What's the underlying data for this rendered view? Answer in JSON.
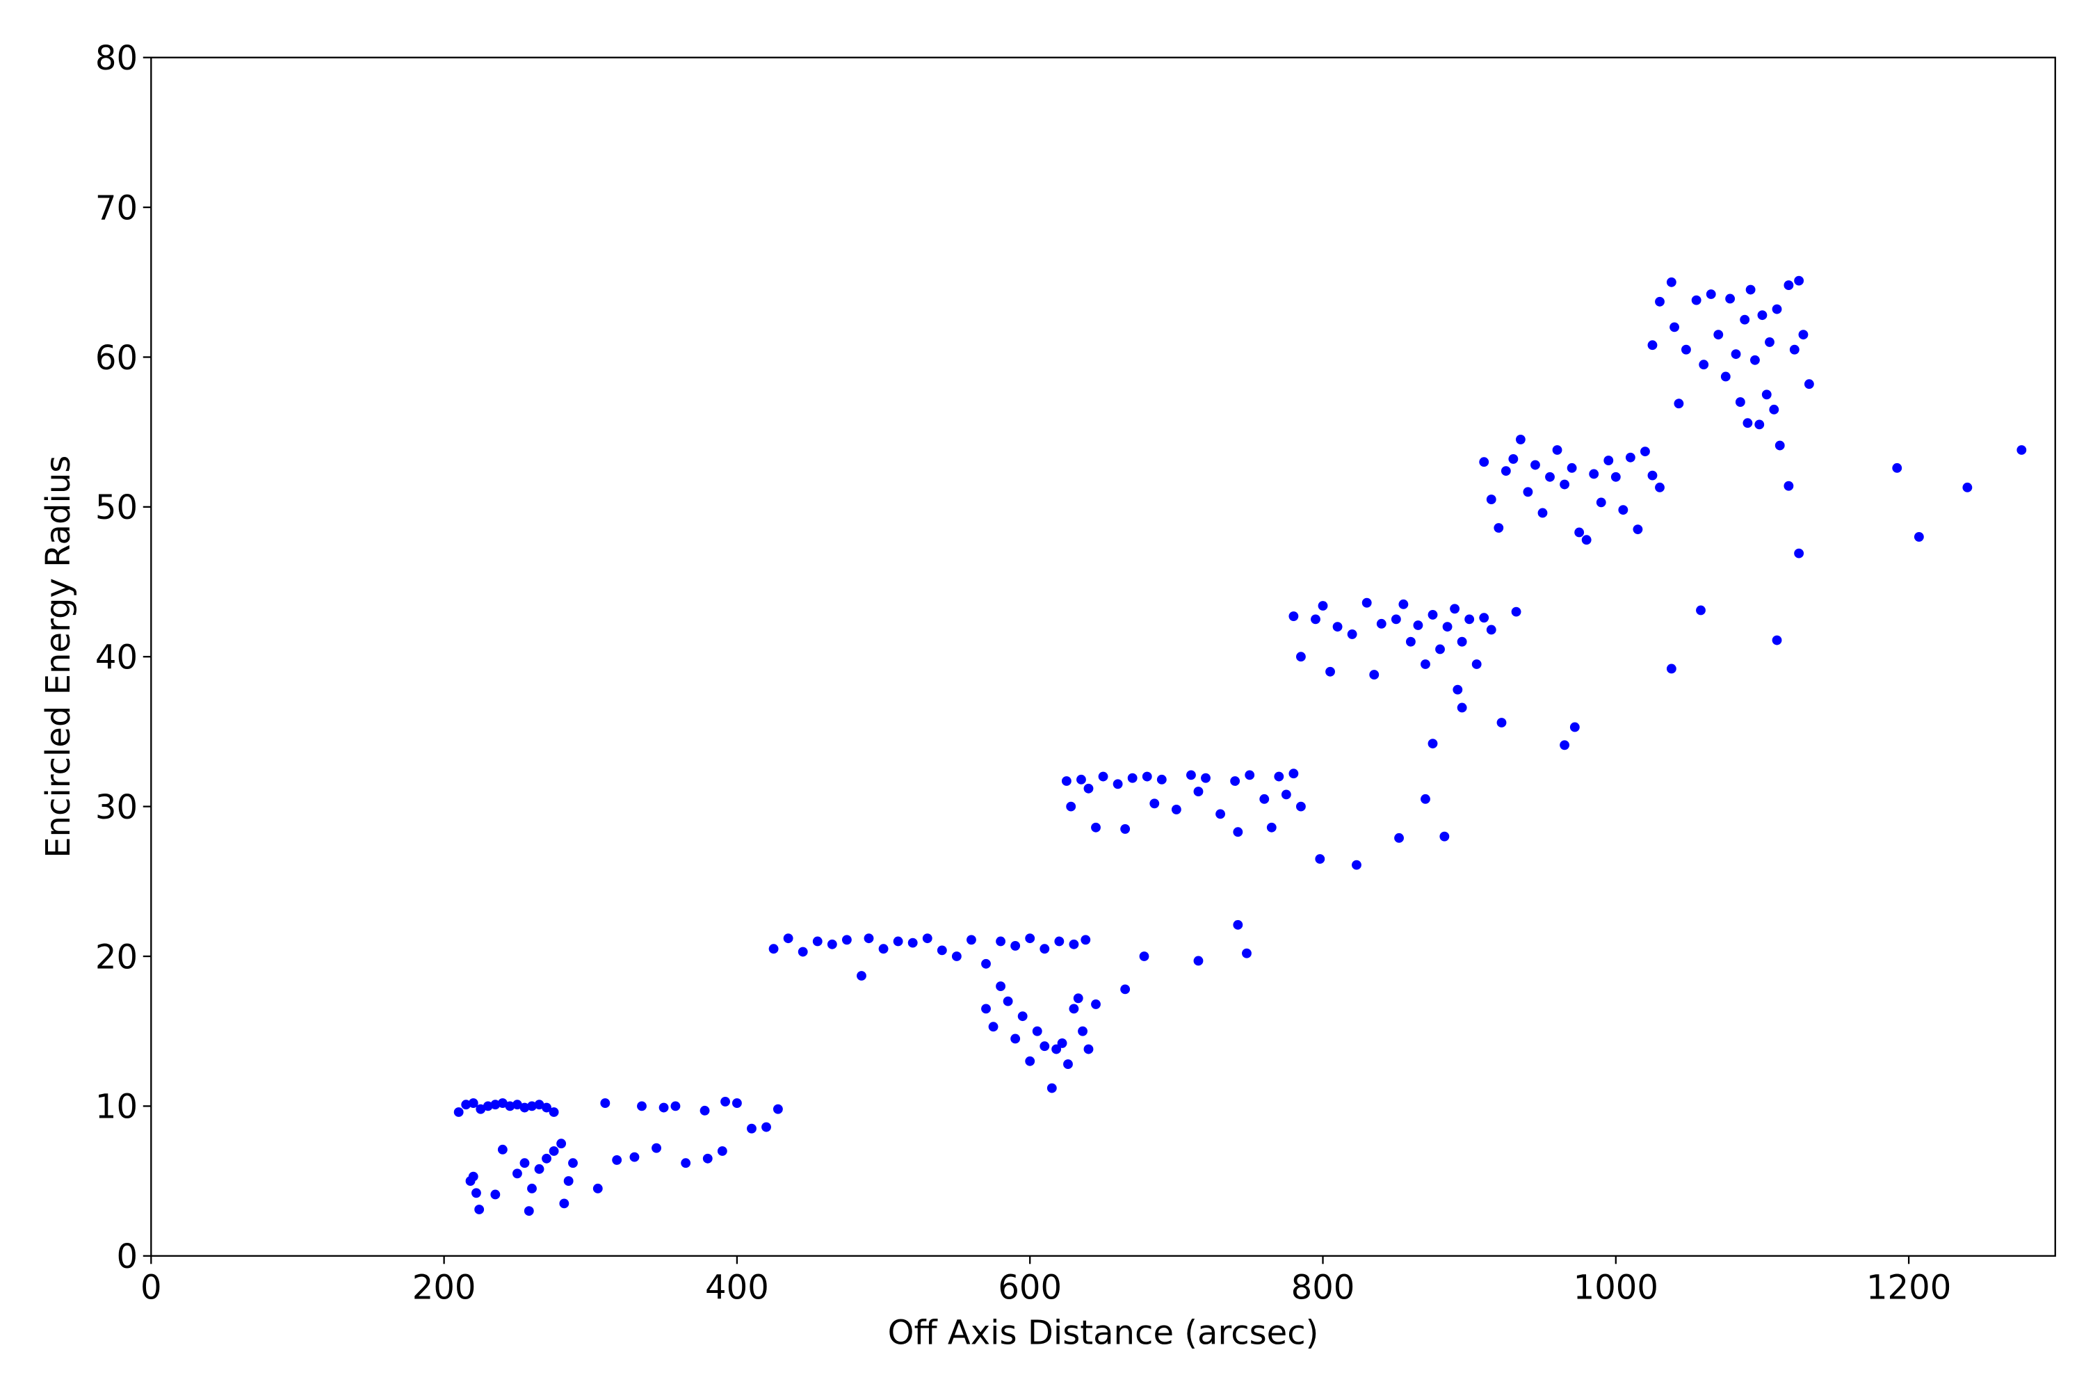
{
  "chart_data": {
    "type": "scatter",
    "xlabel": "Off Axis Distance (arcsec)",
    "ylabel": "Encircled Energy Radius",
    "color": "#0000ff",
    "xlim": [
      0,
      1300
    ],
    "xticks": [
      0,
      200,
      400,
      600,
      800,
      1000,
      1200
    ],
    "ylim": [
      0,
      80
    ],
    "yticks": [
      0,
      10,
      20,
      30,
      40,
      50,
      60,
      70,
      80
    ],
    "x": [
      210,
      215,
      220,
      225,
      230,
      235,
      240,
      245,
      250,
      255,
      260,
      265,
      270,
      275,
      220,
      222,
      224,
      218,
      235,
      240,
      250,
      255,
      258,
      260,
      265,
      270,
      275,
      280,
      282,
      285,
      288,
      305,
      310,
      318,
      330,
      335,
      345,
      350,
      358,
      365,
      378,
      380,
      390,
      392,
      400,
      410,
      420,
      428,
      425,
      435,
      445,
      455,
      465,
      475,
      485,
      490,
      500,
      510,
      520,
      530,
      540,
      550,
      560,
      570,
      580,
      590,
      600,
      610,
      620,
      630,
      638,
      570,
      575,
      580,
      585,
      590,
      595,
      600,
      605,
      610,
      615,
      618,
      622,
      626,
      630,
      633,
      636,
      640,
      645,
      665,
      678,
      715,
      742,
      748,
      625,
      628,
      635,
      640,
      645,
      650,
      660,
      665,
      670,
      680,
      685,
      690,
      700,
      710,
      715,
      720,
      730,
      740,
      742,
      750,
      760,
      765,
      770,
      775,
      780,
      785,
      798,
      823,
      780,
      785,
      795,
      800,
      805,
      810,
      820,
      830,
      835,
      840,
      850,
      855,
      860,
      865,
      870,
      875,
      880,
      885,
      890,
      892,
      895,
      900,
      905,
      910,
      915,
      932,
      895,
      875,
      870,
      883,
      852,
      922,
      965,
      972,
      910,
      915,
      920,
      925,
      930,
      935,
      940,
      945,
      950,
      955,
      960,
      965,
      970,
      975,
      980,
      985,
      990,
      995,
      1000,
      1005,
      1010,
      1015,
      1020,
      1025,
      1030,
      1025,
      1030,
      1038,
      1040,
      1043,
      1048,
      1055,
      1060,
      1065,
      1070,
      1075,
      1078,
      1082,
      1085,
      1088,
      1090,
      1092,
      1095,
      1098,
      1100,
      1103,
      1105,
      1108,
      1110,
      1112,
      1118,
      1122,
      1125,
      1128,
      1132,
      1118,
      1125,
      1110,
      1058,
      1038,
      1192,
      1207,
      1240,
      1277
    ],
    "values": [
      9.6,
      10.1,
      10.2,
      9.8,
      10.0,
      10.1,
      10.2,
      10.0,
      10.1,
      9.9,
      10.0,
      10.1,
      9.9,
      9.6,
      5.3,
      4.2,
      3.1,
      5.0,
      4.1,
      7.1,
      5.5,
      6.2,
      3.0,
      4.5,
      5.8,
      6.5,
      7.0,
      7.5,
      3.5,
      5.0,
      6.2,
      4.5,
      10.2,
      6.4,
      6.6,
      10.0,
      7.2,
      9.9,
      10.0,
      6.2,
      9.7,
      6.5,
      7.0,
      10.3,
      10.2,
      8.5,
      8.6,
      9.8,
      20.5,
      21.2,
      20.3,
      21.0,
      20.8,
      21.1,
      18.7,
      21.2,
      20.5,
      21.0,
      20.9,
      21.2,
      20.4,
      20.0,
      21.1,
      19.5,
      21.0,
      20.7,
      21.2,
      20.5,
      21.0,
      20.8,
      21.1,
      16.5,
      15.3,
      18.0,
      17.0,
      14.5,
      16.0,
      13.0,
      15.0,
      14.0,
      11.2,
      13.8,
      14.2,
      12.8,
      16.5,
      17.2,
      15.0,
      13.8,
      16.8,
      17.8,
      20.0,
      19.7,
      22.1,
      20.2,
      31.7,
      30.0,
      31.8,
      31.2,
      28.6,
      32.0,
      31.5,
      28.5,
      31.9,
      32.0,
      30.2,
      31.8,
      29.8,
      32.1,
      31.0,
      31.9,
      29.5,
      31.7,
      28.3,
      32.1,
      30.5,
      28.6,
      32.0,
      30.8,
      32.2,
      30.0,
      26.5,
      26.1,
      42.7,
      40.0,
      42.5,
      43.4,
      39.0,
      42.0,
      41.5,
      43.6,
      38.8,
      42.2,
      42.5,
      43.5,
      41.0,
      42.1,
      39.5,
      42.8,
      40.5,
      42.0,
      43.2,
      37.8,
      41.0,
      42.5,
      39.5,
      42.6,
      41.8,
      43.0,
      36.6,
      34.2,
      30.5,
      28.0,
      27.9,
      35.6,
      34.1,
      35.3,
      53.0,
      50.5,
      48.6,
      52.4,
      53.2,
      54.5,
      51.0,
      52.8,
      49.6,
      52.0,
      53.8,
      51.5,
      52.6,
      48.3,
      47.8,
      52.2,
      50.3,
      53.1,
      52.0,
      49.8,
      53.3,
      48.5,
      53.7,
      52.1,
      51.3,
      60.8,
      63.7,
      65.0,
      62.0,
      56.9,
      60.5,
      63.8,
      59.5,
      64.2,
      61.5,
      58.7,
      63.9,
      60.2,
      57.0,
      62.5,
      55.6,
      64.5,
      59.8,
      55.5,
      62.8,
      57.5,
      61.0,
      56.5,
      63.2,
      54.1,
      64.8,
      60.5,
      65.1,
      61.5,
      58.2,
      51.4,
      46.9,
      41.1,
      43.1,
      39.2,
      52.6,
      48.0,
      51.3,
      53.8
    ]
  }
}
